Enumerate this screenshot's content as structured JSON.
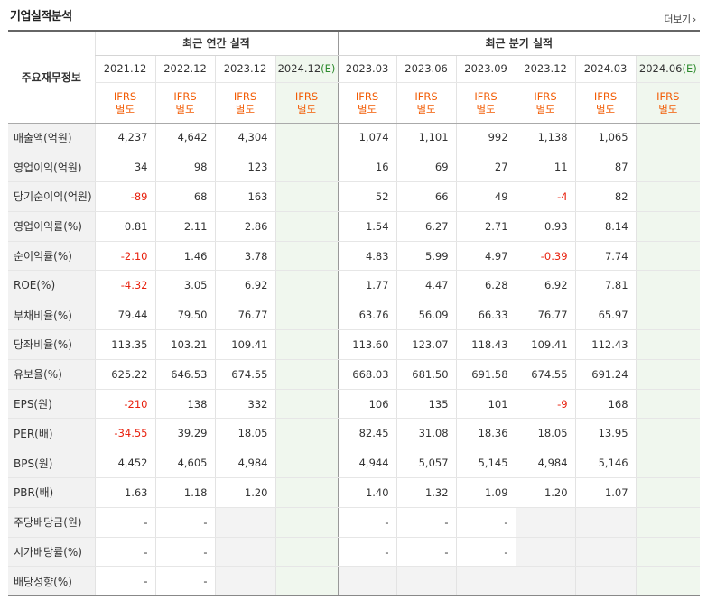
{
  "title": "기업실적분석",
  "more_label": "더보기",
  "headers": {
    "row_header": "주요재무정보",
    "annual_group": "최근 연간 실적",
    "quarter_group": "최근 분기 실적",
    "annual_periods": [
      "2021.12",
      "2022.12",
      "2023.12",
      "2024.12"
    ],
    "annual_estimate_marker": "(E)",
    "quarter_periods": [
      "2023.03",
      "2023.06",
      "2023.09",
      "2023.12",
      "2024.03",
      "2024.06"
    ],
    "quarter_estimate_marker": "(E)",
    "ifrs_line1": "IFRS",
    "ifrs_line2": "별도"
  },
  "rows": [
    {
      "label": "매출액(억원)",
      "annual": [
        "4,237",
        "4,642",
        "4,304",
        ""
      ],
      "quarter": [
        "1,074",
        "1,101",
        "992",
        "1,138",
        "1,065",
        ""
      ]
    },
    {
      "label": "영업이익(억원)",
      "annual": [
        "34",
        "98",
        "123",
        ""
      ],
      "quarter": [
        "16",
        "69",
        "27",
        "11",
        "87",
        ""
      ]
    },
    {
      "label": "당기순이익(억원)",
      "annual": [
        "-89",
        "68",
        "163",
        ""
      ],
      "quarter": [
        "52",
        "66",
        "49",
        "-4",
        "82",
        ""
      ]
    },
    {
      "label": "영업이익률(%)",
      "annual": [
        "0.81",
        "2.11",
        "2.86",
        ""
      ],
      "quarter": [
        "1.54",
        "6.27",
        "2.71",
        "0.93",
        "8.14",
        ""
      ]
    },
    {
      "label": "순이익률(%)",
      "annual": [
        "-2.10",
        "1.46",
        "3.78",
        ""
      ],
      "quarter": [
        "4.83",
        "5.99",
        "4.97",
        "-0.39",
        "7.74",
        ""
      ]
    },
    {
      "label": "ROE(%)",
      "annual": [
        "-4.32",
        "3.05",
        "6.92",
        ""
      ],
      "quarter": [
        "1.77",
        "4.47",
        "6.28",
        "6.92",
        "7.81",
        ""
      ]
    },
    {
      "label": "부채비율(%)",
      "annual": [
        "79.44",
        "79.50",
        "76.77",
        ""
      ],
      "quarter": [
        "63.76",
        "56.09",
        "66.33",
        "76.77",
        "65.97",
        ""
      ]
    },
    {
      "label": "당좌비율(%)",
      "annual": [
        "113.35",
        "103.21",
        "109.41",
        ""
      ],
      "quarter": [
        "113.60",
        "123.07",
        "118.43",
        "109.41",
        "112.43",
        ""
      ]
    },
    {
      "label": "유보율(%)",
      "annual": [
        "625.22",
        "646.53",
        "674.55",
        ""
      ],
      "quarter": [
        "668.03",
        "681.50",
        "691.58",
        "674.55",
        "691.24",
        ""
      ]
    },
    {
      "label": "EPS(원)",
      "annual": [
        "-210",
        "138",
        "332",
        ""
      ],
      "quarter": [
        "106",
        "135",
        "101",
        "-9",
        "168",
        ""
      ]
    },
    {
      "label": "PER(배)",
      "annual": [
        "-34.55",
        "39.29",
        "18.05",
        ""
      ],
      "quarter": [
        "82.45",
        "31.08",
        "18.36",
        "18.05",
        "13.95",
        ""
      ]
    },
    {
      "label": "BPS(원)",
      "annual": [
        "4,452",
        "4,605",
        "4,984",
        ""
      ],
      "quarter": [
        "4,944",
        "5,057",
        "5,145",
        "4,984",
        "5,146",
        ""
      ]
    },
    {
      "label": "PBR(배)",
      "annual": [
        "1.63",
        "1.18",
        "1.20",
        ""
      ],
      "quarter": [
        "1.40",
        "1.32",
        "1.09",
        "1.20",
        "1.07",
        ""
      ]
    },
    {
      "label": "주당배당금(원)",
      "annual": [
        "-",
        "-",
        "",
        ""
      ],
      "quarter": [
        "-",
        "-",
        "-",
        "",
        "",
        ""
      ]
    },
    {
      "label": "시가배당률(%)",
      "annual": [
        "-",
        "-",
        "",
        ""
      ],
      "quarter": [
        "-",
        "-",
        "-",
        "",
        "",
        ""
      ]
    },
    {
      "label": "배당성향(%)",
      "annual": [
        "-",
        "-",
        "",
        ""
      ],
      "quarter": [
        "",
        "",
        "",
        "",
        "",
        ""
      ]
    }
  ],
  "colors": {
    "negative": "#e8220f",
    "ifrs": "#f25c05",
    "estimate_bg": "#f0f7ee",
    "estimate_mark": "#2e8b2e"
  }
}
